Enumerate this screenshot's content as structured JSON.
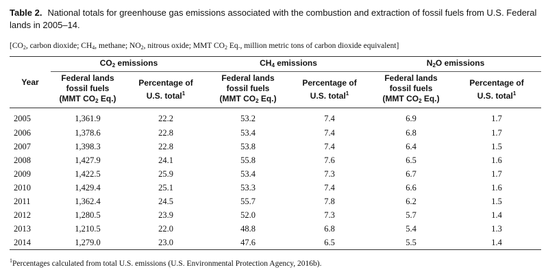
{
  "title": {
    "label": "Table 2.",
    "text": "National totals for greenhouse gas emissions associated with the combustion and extraction of fossil fuels from U.S. Federal lands in 2005–14."
  },
  "note": {
    "p1": "[CO",
    "s1": "2",
    "p2": ", carbon dioxide; CH",
    "s2": "4",
    "p3": ", methane; NO",
    "s3": "2",
    "p4": ", nitrous oxide; MMT CO",
    "s4": "2",
    "p5": " Eq., million metric tons of carbon dioxide equivalent]"
  },
  "header": {
    "year": "Year",
    "groups": [
      {
        "prefix": "CO",
        "sub": "2",
        "suffix": " emissions"
      },
      {
        "prefix": "CH",
        "sub": "4",
        "suffix": " emissions"
      },
      {
        "prefix": "N",
        "sub": "2",
        "suffix": "O emissions"
      }
    ],
    "fed_line1": "Federal lands",
    "fed_line2": "fossil fuels",
    "fed_unit_prefix": "(MMT CO",
    "fed_unit_sub": "2",
    "fed_unit_suffix": " Eq.)",
    "pct_line1": "Percentage of",
    "pct_line2": "U.S. total",
    "pct_sup": "1"
  },
  "rows": [
    {
      "year": "2005",
      "co2": "1,361.9",
      "co2_pct": "22.2",
      "ch4": "53.2",
      "ch4_pct": "7.4",
      "n2o": "6.9",
      "n2o_pct": "1.7"
    },
    {
      "year": "2006",
      "co2": "1,378.6",
      "co2_pct": "22.8",
      "ch4": "53.4",
      "ch4_pct": "7.4",
      "n2o": "6.8",
      "n2o_pct": "1.7"
    },
    {
      "year": "2007",
      "co2": "1,398.3",
      "co2_pct": "22.8",
      "ch4": "53.8",
      "ch4_pct": "7.4",
      "n2o": "6.4",
      "n2o_pct": "1.5"
    },
    {
      "year": "2008",
      "co2": "1,427.9",
      "co2_pct": "24.1",
      "ch4": "55.8",
      "ch4_pct": "7.6",
      "n2o": "6.5",
      "n2o_pct": "1.6"
    },
    {
      "year": "2009",
      "co2": "1,422.5",
      "co2_pct": "25.9",
      "ch4": "53.4",
      "ch4_pct": "7.3",
      "n2o": "6.7",
      "n2o_pct": "1.7"
    },
    {
      "year": "2010",
      "co2": "1,429.4",
      "co2_pct": "25.1",
      "ch4": "53.3",
      "ch4_pct": "7.4",
      "n2o": "6.6",
      "n2o_pct": "1.6"
    },
    {
      "year": "2011",
      "co2": "1,362.4",
      "co2_pct": "24.5",
      "ch4": "55.7",
      "ch4_pct": "7.8",
      "n2o": "6.2",
      "n2o_pct": "1.5"
    },
    {
      "year": "2012",
      "co2": "1,280.5",
      "co2_pct": "23.9",
      "ch4": "52.0",
      "ch4_pct": "7.3",
      "n2o": "5.7",
      "n2o_pct": "1.4"
    },
    {
      "year": "2013",
      "co2": "1,210.5",
      "co2_pct": "22.0",
      "ch4": "48.8",
      "ch4_pct": "6.8",
      "n2o": "5.4",
      "n2o_pct": "1.3"
    },
    {
      "year": "2014",
      "co2": "1,279.0",
      "co2_pct": "23.0",
      "ch4": "47.6",
      "ch4_pct": "6.5",
      "n2o": "5.5",
      "n2o_pct": "1.4"
    }
  ],
  "footnote": {
    "sup": "1",
    "text": "Percentages calculated from total U.S. emissions (U.S. Environmental Protection Agency, 2016b)."
  }
}
